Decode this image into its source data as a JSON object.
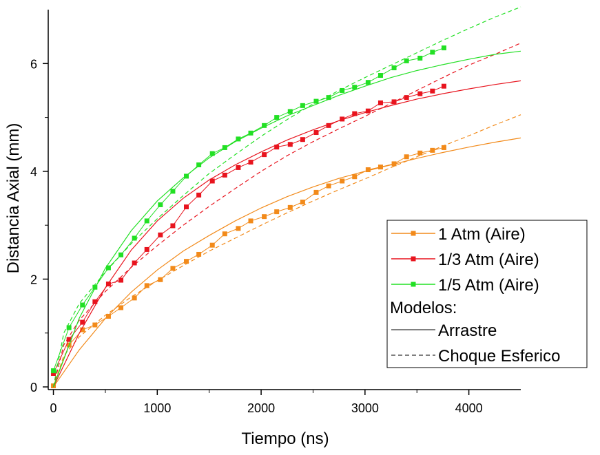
{
  "chart_data": {
    "type": "line",
    "title": "",
    "xlabel": "Tiempo (ns)",
    "ylabel": "Distancia Axial (mm)",
    "xlim": [
      -50,
      4500
    ],
    "ylim": [
      -0.05,
      7.0
    ],
    "xticks": [
      0,
      1000,
      2000,
      3000,
      4000
    ],
    "yticks": [
      0,
      2,
      4,
      6
    ],
    "grid": false,
    "legend_position": "bottom-right",
    "legend_models_header": "Modelos:",
    "legend_model_items": [
      {
        "label": "Arrastre",
        "style": "solid"
      },
      {
        "label": "Choque Esferico",
        "style": "dashed"
      }
    ],
    "series": [
      {
        "name": "1 Atm (Aire)",
        "color": "#F28A1A",
        "x": [
          0,
          150,
          280,
          400,
          530,
          650,
          780,
          900,
          1030,
          1150,
          1280,
          1400,
          1530,
          1650,
          1780,
          1900,
          2030,
          2150,
          2280,
          2400,
          2530,
          2650,
          2780,
          2900,
          3030,
          3150,
          3280,
          3400,
          3530,
          3650,
          3760
        ],
        "y": [
          0.02,
          0.78,
          1.06,
          1.15,
          1.31,
          1.47,
          1.65,
          1.88,
          1.99,
          2.2,
          2.33,
          2.46,
          2.63,
          2.84,
          2.94,
          3.08,
          3.16,
          3.25,
          3.33,
          3.43,
          3.61,
          3.73,
          3.82,
          3.9,
          4.03,
          4.08,
          4.14,
          4.27,
          4.34,
          4.39,
          4.44
        ],
        "model_drag_x": [
          0,
          250,
          500,
          750,
          1000,
          1250,
          1500,
          1750,
          2000,
          2250,
          2500,
          2750,
          3000,
          3250,
          3500,
          3750,
          4000,
          4250,
          4500
        ],
        "model_drag_y": [
          0,
          0.69,
          1.27,
          1.76,
          2.17,
          2.52,
          2.81,
          3.08,
          3.32,
          3.53,
          3.71,
          3.87,
          4.0,
          4.12,
          4.24,
          4.35,
          4.45,
          4.54,
          4.62
        ],
        "model_sphere_x": [
          0,
          100,
          250,
          500,
          750,
          1000,
          1250,
          1500,
          1750,
          2000,
          2250,
          2500,
          2750,
          3000,
          3250,
          3500,
          3750,
          4000,
          4250,
          4500
        ],
        "model_sphere_y": [
          0,
          0.58,
          0.93,
          1.33,
          1.67,
          1.97,
          2.25,
          2.52,
          2.76,
          3.0,
          3.23,
          3.45,
          3.66,
          3.86,
          4.07,
          4.27,
          4.47,
          4.66,
          4.86,
          5.05
        ]
      },
      {
        "name": "1/3 Atm (Aire)",
        "color": "#E8141E",
        "x": [
          0,
          150,
          280,
          400,
          530,
          650,
          780,
          900,
          1030,
          1150,
          1280,
          1400,
          1530,
          1650,
          1780,
          1900,
          2030,
          2150,
          2280,
          2400,
          2530,
          2650,
          2780,
          2900,
          3030,
          3150,
          3280,
          3400,
          3530,
          3650,
          3760
        ],
        "y": [
          0.25,
          0.88,
          1.2,
          1.58,
          1.91,
          1.98,
          2.3,
          2.55,
          2.82,
          2.99,
          3.34,
          3.56,
          3.82,
          3.93,
          4.07,
          4.17,
          4.31,
          4.45,
          4.5,
          4.59,
          4.72,
          4.85,
          4.97,
          5.07,
          5.12,
          5.27,
          5.29,
          5.37,
          5.44,
          5.49,
          5.58
        ],
        "model_drag_x": [
          0,
          250,
          500,
          750,
          1000,
          1250,
          1500,
          1750,
          2000,
          2250,
          2500,
          2750,
          3000,
          3250,
          3500,
          3750,
          4000,
          4250,
          4500
        ],
        "model_drag_y": [
          0,
          1.0,
          1.84,
          2.54,
          3.08,
          3.5,
          3.84,
          4.12,
          4.36,
          4.58,
          4.77,
          4.94,
          5.09,
          5.22,
          5.34,
          5.44,
          5.53,
          5.61,
          5.68
        ],
        "model_sphere_x": [
          0,
          100,
          250,
          500,
          750,
          1000,
          1250,
          1500,
          1750,
          2000,
          2250,
          2500,
          2750,
          3000,
          3250,
          3500,
          3750,
          4000,
          4250,
          4500
        ],
        "model_sphere_y": [
          0,
          0.78,
          1.24,
          1.77,
          2.22,
          2.62,
          3.0,
          3.35,
          3.68,
          4.0,
          4.29,
          4.55,
          4.79,
          5.02,
          5.26,
          5.5,
          5.74,
          5.97,
          6.17,
          6.38
        ]
      },
      {
        "name": "1/5 Atm (Aire)",
        "color": "#22E024",
        "x": [
          0,
          150,
          280,
          400,
          530,
          650,
          780,
          900,
          1030,
          1150,
          1280,
          1400,
          1530,
          1650,
          1780,
          1900,
          2030,
          2150,
          2280,
          2400,
          2530,
          2650,
          2780,
          2900,
          3030,
          3150,
          3280,
          3400,
          3530,
          3650,
          3760
        ],
        "y": [
          0.3,
          1.1,
          1.52,
          1.85,
          2.21,
          2.45,
          2.76,
          3.08,
          3.38,
          3.63,
          3.91,
          4.12,
          4.33,
          4.44,
          4.6,
          4.71,
          4.85,
          5.0,
          5.11,
          5.22,
          5.3,
          5.37,
          5.5,
          5.56,
          5.65,
          5.78,
          5.92,
          6.05,
          6.1,
          6.21,
          6.29
        ],
        "model_drag_x": [
          0,
          250,
          500,
          750,
          1000,
          1250,
          1500,
          1750,
          2000,
          2250,
          2500,
          2750,
          3000,
          3250,
          3500,
          3750,
          4000,
          4250,
          4500
        ],
        "model_drag_y": [
          0,
          1.28,
          2.2,
          2.9,
          3.45,
          3.88,
          4.25,
          4.55,
          4.8,
          5.03,
          5.22,
          5.41,
          5.58,
          5.74,
          5.87,
          5.98,
          6.08,
          6.17,
          6.23
        ],
        "model_sphere_x": [
          0,
          100,
          250,
          500,
          750,
          1000,
          1250,
          1500,
          1750,
          2000,
          2250,
          2500,
          2750,
          3000,
          3250,
          3500,
          3750,
          4000,
          4250,
          4500
        ],
        "model_sphere_y": [
          0,
          1.0,
          1.55,
          2.13,
          2.66,
          3.12,
          3.55,
          3.96,
          4.31,
          4.65,
          4.96,
          5.25,
          5.5,
          5.74,
          5.97,
          6.2,
          6.43,
          6.65,
          6.86,
          7.05
        ]
      }
    ]
  }
}
